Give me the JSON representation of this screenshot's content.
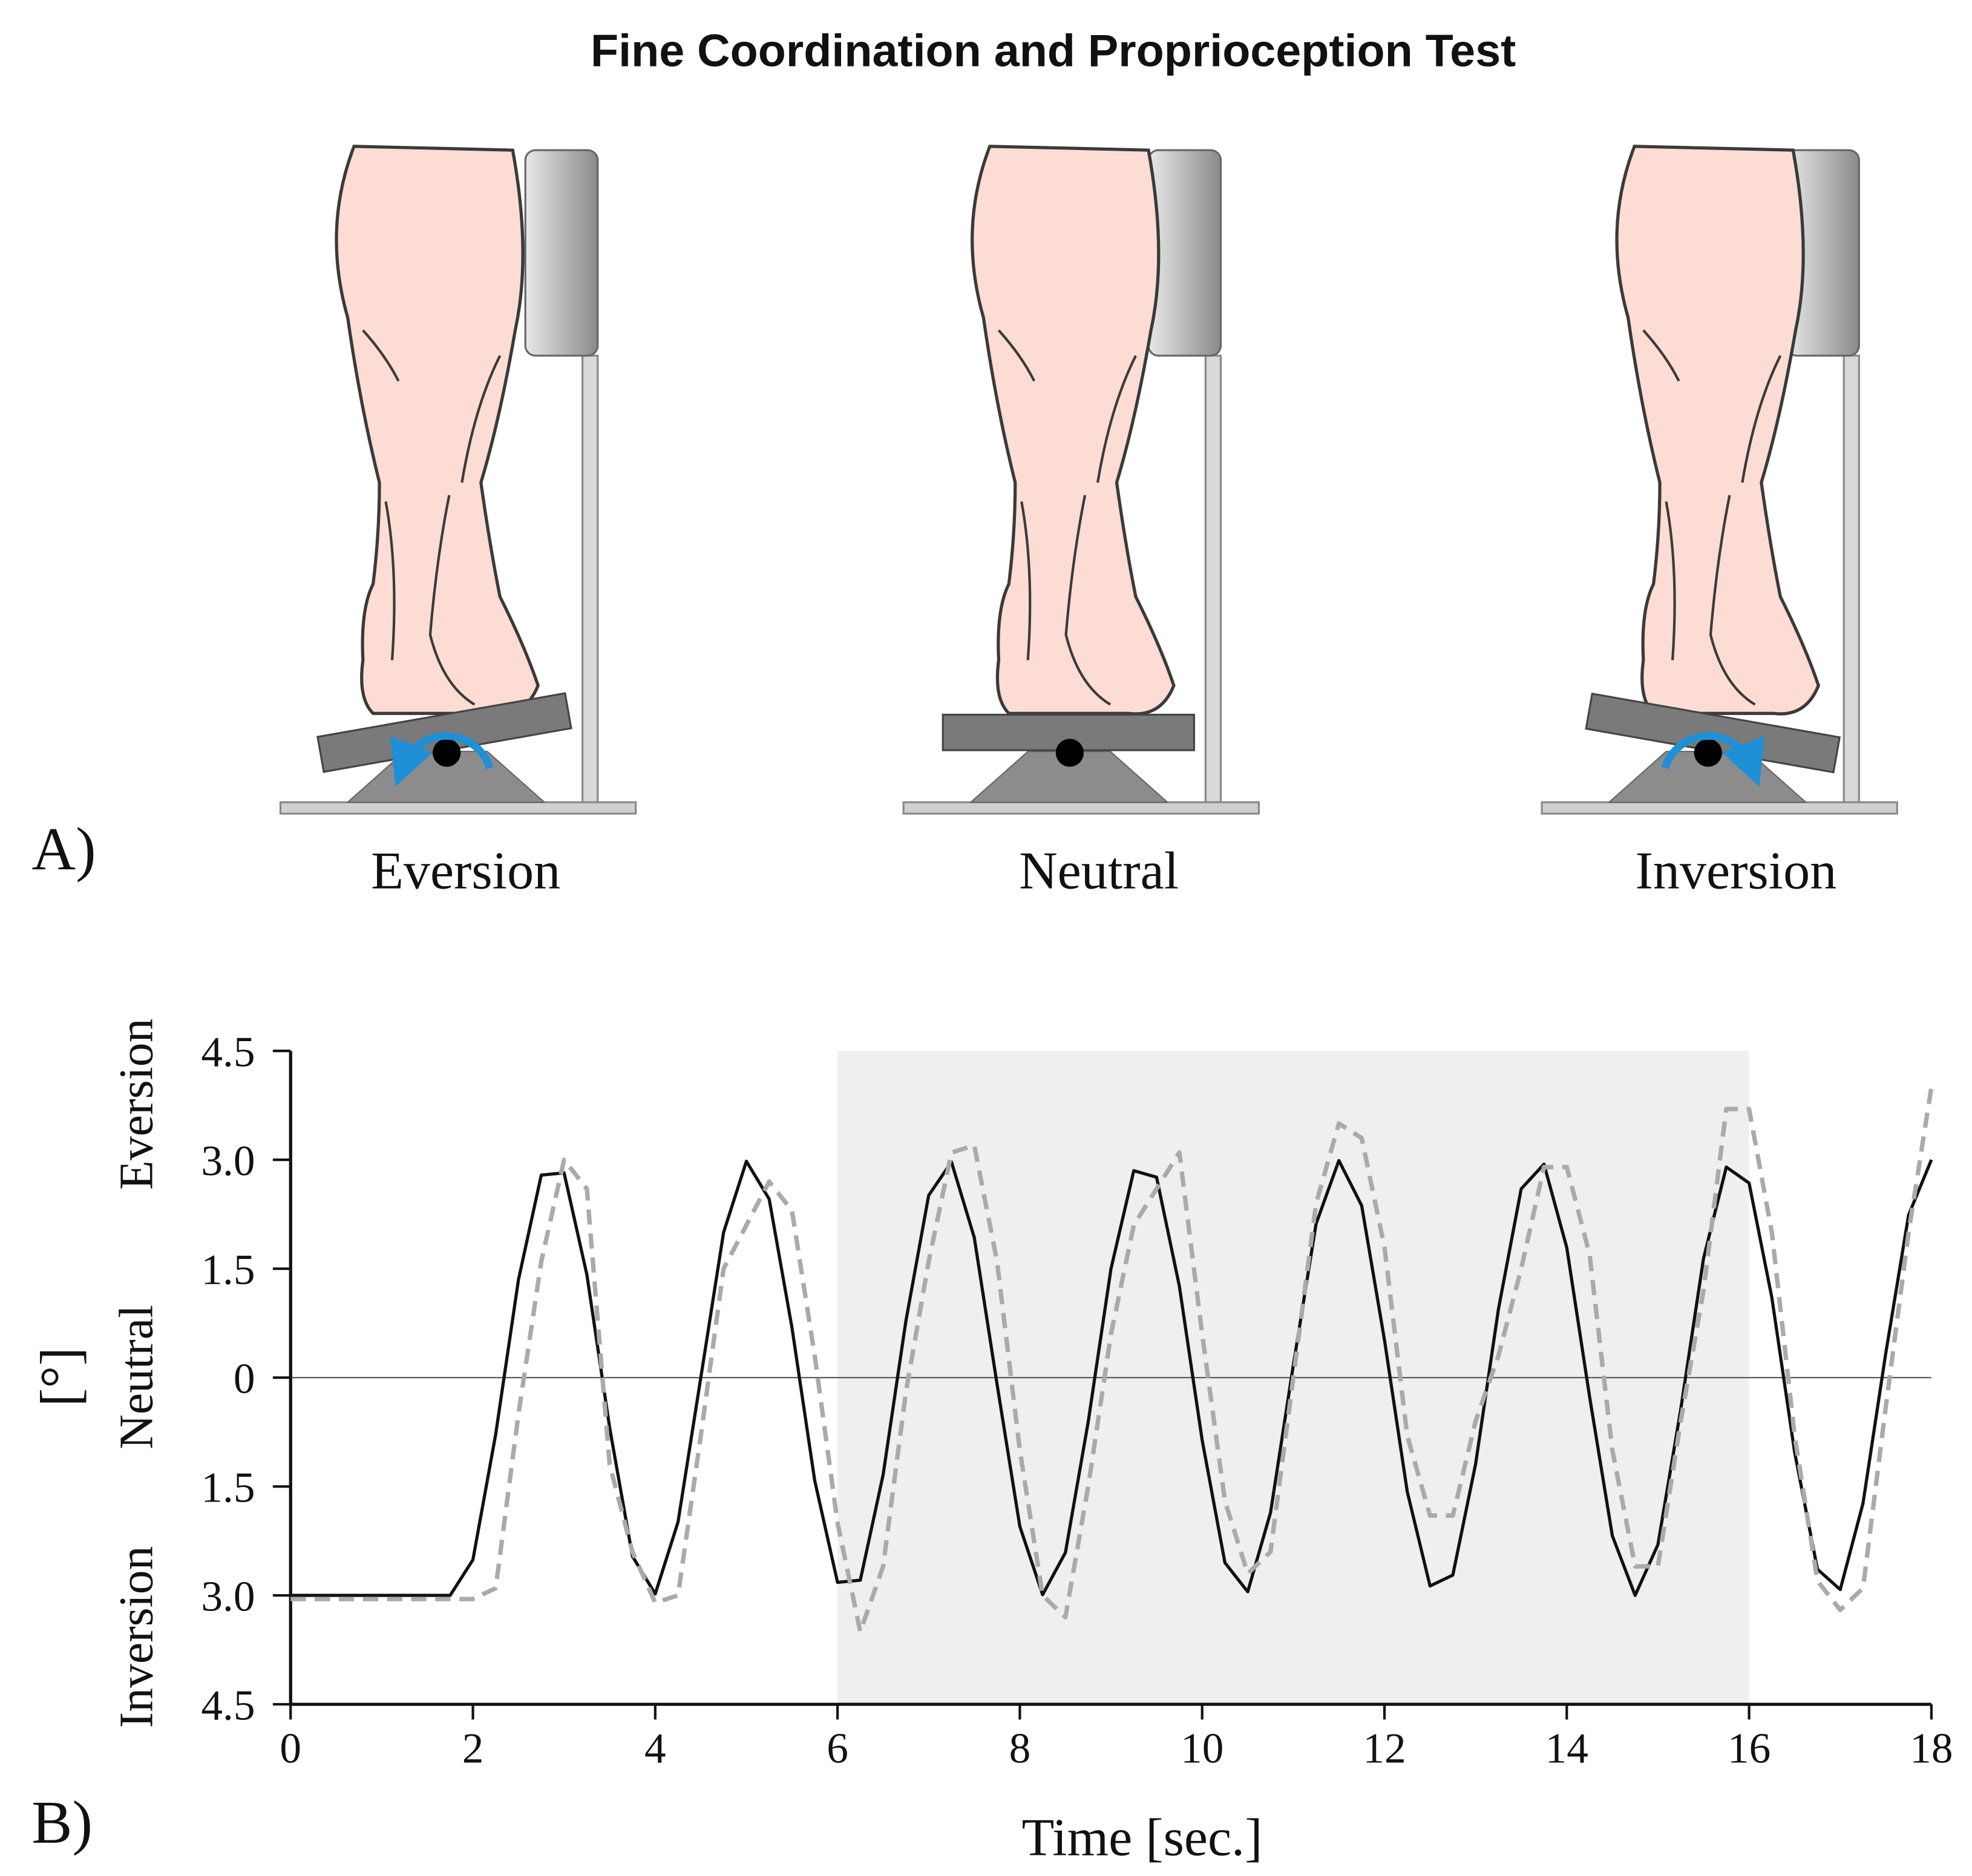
{
  "title": "Fine Coordination and Proprioception Test",
  "panel_labels": [
    "A)",
    "B)"
  ],
  "illustration": {
    "labels": [
      "Eversion",
      "Neutral",
      "Inversion"
    ]
  },
  "chart_data": {
    "type": "line",
    "xlabel": "Time [sec.]",
    "ylabel": "[°]",
    "y_side_labels": [
      "Eversion",
      "Neutral",
      "Inversion"
    ],
    "xlim": [
      0,
      18
    ],
    "xticks": [
      0,
      2,
      4,
      6,
      8,
      10,
      12,
      14,
      16,
      18
    ],
    "ylim": [
      -4.5,
      4.5
    ],
    "yticks": [
      4.5,
      {
        "value": 3,
        "label": "3.0"
      },
      1.5,
      0,
      {
        "value": -1.5,
        "label": "1.5"
      },
      {
        "value": -3,
        "label": "3.0"
      },
      {
        "value": -4.5,
        "label": "4.5"
      }
    ],
    "shaded_x": [
      6,
      16
    ],
    "shade_color": "#efefef",
    "zero_line": true,
    "x": [
      0,
      0.25,
      0.5,
      0.75,
      1,
      1.25,
      1.5,
      1.75,
      2,
      2.25,
      2.5,
      2.75,
      3,
      3.25,
      3.5,
      3.75,
      4,
      4.25,
      4.5,
      4.75,
      5,
      5.25,
      5.5,
      5.75,
      6,
      6.25,
      6.5,
      6.75,
      7,
      7.25,
      7.5,
      7.75,
      8,
      8.25,
      8.5,
      8.75,
      9,
      9.25,
      9.5,
      9.75,
      10,
      10.25,
      10.5,
      10.75,
      11,
      11.25,
      11.5,
      11.75,
      12,
      12.25,
      12.5,
      12.75,
      13,
      13.25,
      13.5,
      13.75,
      14,
      14.25,
      14.5,
      14.75,
      15,
      15.25,
      15.5,
      15.75,
      16,
      16.25,
      16.5,
      16.75,
      17,
      17.25,
      17.5,
      17.75,
      18
    ],
    "series": [
      {
        "color": "#111111",
        "line_style": "solid",
        "values": [
          -3,
          -3,
          -3,
          -3,
          -3,
          -3,
          -3,
          -3,
          -2.51,
          -0.78,
          1.35,
          2.79,
          2.82,
          1.42,
          -0.69,
          -2.46,
          -2.98,
          -1.99,
          0,
          2,
          2.98,
          2.46,
          0.69,
          -1.42,
          -2.82,
          -2.79,
          -1.34,
          0.78,
          2.51,
          2.97,
          1.93,
          -0.09,
          -2.05,
          -2.99,
          -2.41,
          -0.61,
          1.5,
          2.85,
          2.76,
          1.26,
          -0.86,
          -2.55,
          -2.95,
          -1.86,
          0.17,
          2.12,
          2.99,
          2.37,
          0.52,
          -1.57,
          -2.87,
          -2.72,
          -1.19,
          0.94,
          2.6,
          2.94,
          1.79,
          -0.26,
          -2.18,
          -3,
          -2.3,
          -0.44,
          1.64,
          2.9,
          2.68,
          1.1,
          -1.03,
          -2.64,
          -2.92,
          -1.73,
          0.34,
          2.24,
          3
        ]
      },
      {
        "color": "#aaaaaa",
        "line_style": "dashed",
        "values": [
          -3.05,
          -3.05,
          -3.05,
          -3.05,
          -3.05,
          -3.05,
          -3.05,
          -3.05,
          -3.05,
          -2.9,
          -0.5,
          1.6,
          3,
          2.6,
          -1.2,
          -2.4,
          -3.1,
          -3,
          -0.8,
          1.5,
          2.1,
          2.7,
          2.3,
          0.3,
          -2,
          -3.5,
          -2.6,
          -0.2,
          1.6,
          3.1,
          3.2,
          1.6,
          -1,
          -3,
          -3.3,
          -1.5,
          0.6,
          2.1,
          2.6,
          3.1,
          0.6,
          -1.7,
          -2.7,
          -2.4,
          0,
          2.4,
          3.5,
          3.3,
          1.8,
          -0.8,
          -1.9,
          -1.9,
          -0.6,
          0.3,
          1.5,
          2.9,
          2.9,
          1.7,
          -1,
          -2.6,
          -2.6,
          -0.6,
          1.2,
          3.7,
          3.7,
          2,
          -0.8,
          -2.8,
          -3.2,
          -2.9,
          -0.4,
          2,
          4
        ]
      }
    ]
  }
}
